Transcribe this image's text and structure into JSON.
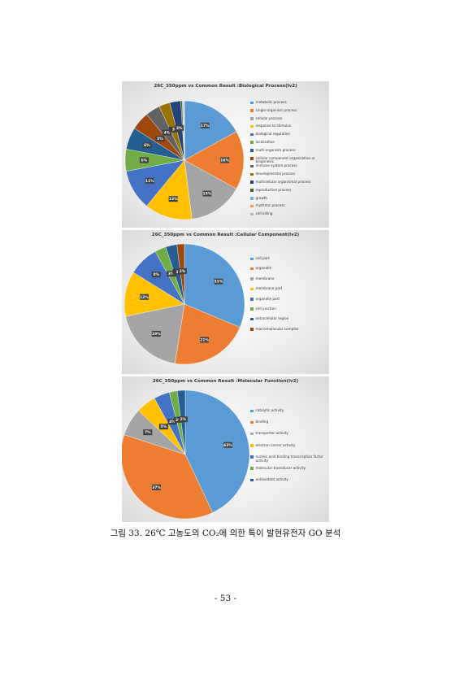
{
  "chart_data": [
    {
      "type": "pie",
      "title": "26C_350ppm vs Common Result :Biological Process(lv2)",
      "categories": [
        "metabolic process",
        "single-organism process",
        "cellular process",
        "response to stimulus",
        "biological regulation",
        "localization",
        "multi-organism process",
        "cellular component organization or biogenesis",
        "immune system process",
        "developmental process",
        "multicellular organismal process",
        "reproductive process",
        "growth",
        "rhythmic process",
        "cell killing"
      ],
      "values": [
        17,
        16,
        15,
        13,
        11,
        6,
        6,
        5,
        4,
        3,
        3,
        0.4,
        0.3,
        0.2,
        0.1
      ],
      "value_labels": [
        "17%",
        "16%",
        "15%",
        "13%",
        "11%",
        "6%",
        "6%",
        "5%",
        "4%",
        "3",
        "3%",
        null,
        null,
        null,
        null
      ],
      "colors": [
        "#5b9bd5",
        "#ed7d31",
        "#a5a5a5",
        "#ffc000",
        "#4472c4",
        "#70ad47",
        "#255e91",
        "#9e480e",
        "#636363",
        "#997300",
        "#264478",
        "#43682b",
        "#7cafdd",
        "#f1975a",
        "#b7b7b7"
      ]
    },
    {
      "type": "pie",
      "title": "26C_350ppm vs Common Result :Cellular Component(lv2)",
      "categories": [
        "cell part",
        "organelle",
        "membrane",
        "membrane part",
        "organelle part",
        "cell junction",
        "extracellular region",
        "macromolecular complex"
      ],
      "values": [
        31,
        21,
        19,
        12,
        8,
        3,
        3,
        2
      ],
      "value_labels": [
        "31%",
        "21%",
        "19%",
        "12%",
        "8%",
        "3%",
        "3",
        "2%"
      ],
      "colors": [
        "#5b9bd5",
        "#ed7d31",
        "#a5a5a5",
        "#ffc000",
        "#4472c4",
        "#70ad47",
        "#255e91",
        "#9e480e"
      ]
    },
    {
      "type": "pie",
      "title": "26C_350ppm vs Common Result :Molecular Function(lv2)",
      "categories": [
        "catalytic activity",
        "binding",
        "transporter activity",
        "electron carrier activity",
        "nucleic acid binding transcription factor activity",
        "molecular transducer activity",
        "antioxidant activity"
      ],
      "values": [
        43,
        37,
        7,
        5,
        4,
        2,
        2
      ],
      "value_labels": [
        "43%",
        "37%",
        "7%",
        "5%",
        "4%",
        "2%",
        "2%"
      ],
      "colors": [
        "#5b9bd5",
        "#ed7d31",
        "#a5a5a5",
        "#ffc000",
        "#4472c4",
        "#70ad47",
        "#255e91"
      ]
    }
  ],
  "caption": "그림 33. 26℃ 고농도의 CO₂에 의한 특이 발현유전자 GO 분석",
  "page_number": "- 53 -"
}
